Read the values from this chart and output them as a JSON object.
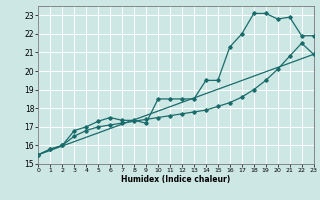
{
  "xlabel": "Humidex (Indice chaleur)",
  "xlim": [
    0,
    23
  ],
  "ylim": [
    15,
    23.5
  ],
  "yticks": [
    15,
    16,
    17,
    18,
    19,
    20,
    21,
    22,
    23
  ],
  "xticks": [
    0,
    1,
    2,
    3,
    4,
    5,
    6,
    7,
    8,
    9,
    10,
    11,
    12,
    13,
    14,
    15,
    16,
    17,
    18,
    19,
    20,
    21,
    22,
    23
  ],
  "bg_color": "#cde8e4",
  "grid_color": "#ffffff",
  "line_color": "#1a6b6b",
  "line1_x": [
    0,
    1,
    2,
    3,
    4,
    5,
    6,
    7,
    8,
    9,
    10,
    11,
    12,
    13,
    14,
    15,
    16,
    17,
    18,
    19,
    20,
    21,
    22,
    23
  ],
  "line1_y": [
    15.5,
    15.8,
    16.0,
    16.5,
    16.8,
    17.0,
    17.1,
    17.2,
    17.3,
    17.4,
    17.5,
    17.6,
    17.7,
    17.8,
    17.9,
    18.1,
    18.3,
    18.6,
    19.0,
    19.5,
    20.1,
    20.8,
    21.5,
    20.9
  ],
  "line2_x": [
    0,
    1,
    2,
    3,
    4,
    5,
    6,
    7,
    8,
    9,
    10,
    11,
    12,
    13,
    14,
    15,
    16,
    17,
    18,
    19,
    20,
    21,
    22,
    23
  ],
  "line2_y": [
    15.5,
    15.8,
    16.0,
    16.8,
    17.0,
    17.3,
    17.5,
    17.35,
    17.35,
    17.2,
    18.5,
    18.5,
    18.5,
    18.5,
    19.5,
    19.5,
    21.3,
    22.0,
    23.1,
    23.1,
    22.8,
    22.9,
    21.9,
    21.9
  ],
  "line3_x": [
    0,
    23
  ],
  "line3_y": [
    15.5,
    20.9
  ]
}
